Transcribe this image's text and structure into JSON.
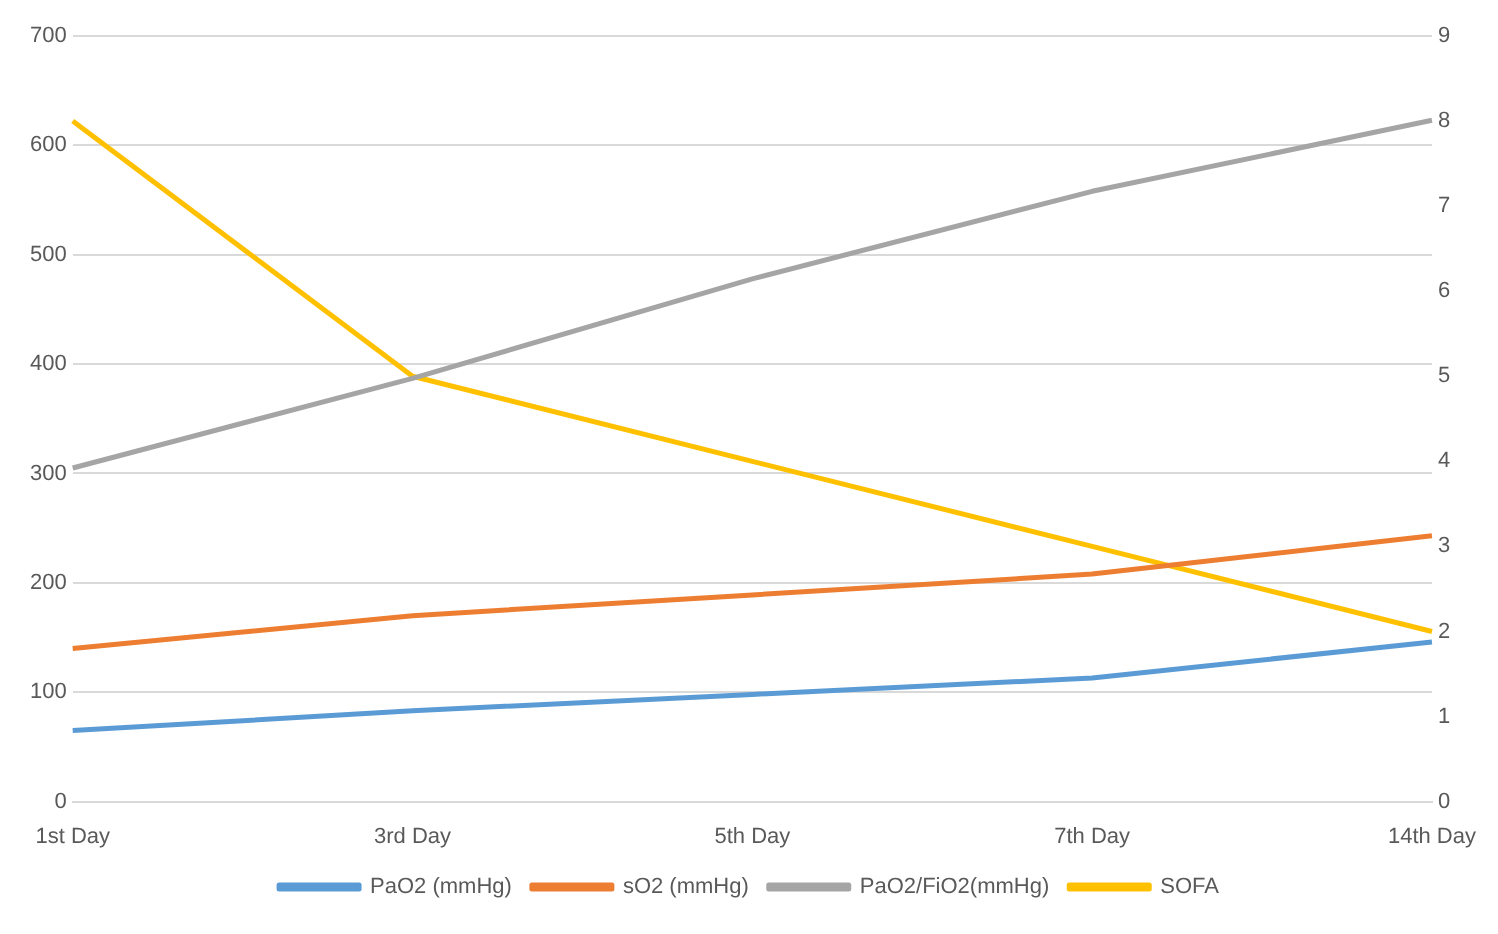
{
  "chart_data": {
    "type": "line",
    "categories": [
      "1st Day",
      "3rd Day",
      "5th Day",
      "7th Day",
      "14th Day"
    ],
    "series": [
      {
        "name": "PaO2 (mmHg)",
        "color": "#5b9bd5",
        "values": [
          65,
          83,
          98,
          113,
          146
        ]
      },
      {
        "name": "sO2 (mmHg)",
        "color": "#ed7d31",
        "values": [
          140,
          170,
          189,
          208,
          243
        ]
      },
      {
        "name": "PaO2/FiO2(mmHg)",
        "color": "#a5a5a5",
        "values": [
          305,
          387,
          478,
          558,
          623
        ]
      },
      {
        "name": "SOFA",
        "color": "#ffc000",
        "values": [
          8,
          5,
          4,
          3,
          2
        ],
        "axis": "y2"
      }
    ],
    "ylim": [
      0,
      700
    ],
    "yticks": [
      0,
      100,
      200,
      300,
      400,
      500,
      600,
      700
    ],
    "y2lim": [
      0,
      9
    ],
    "y2ticks": [
      0,
      1,
      2,
      3,
      4,
      5,
      6,
      7,
      8,
      9
    ],
    "grid": "y",
    "legend": "bottom",
    "marker": "none",
    "line_style": "solid"
  }
}
